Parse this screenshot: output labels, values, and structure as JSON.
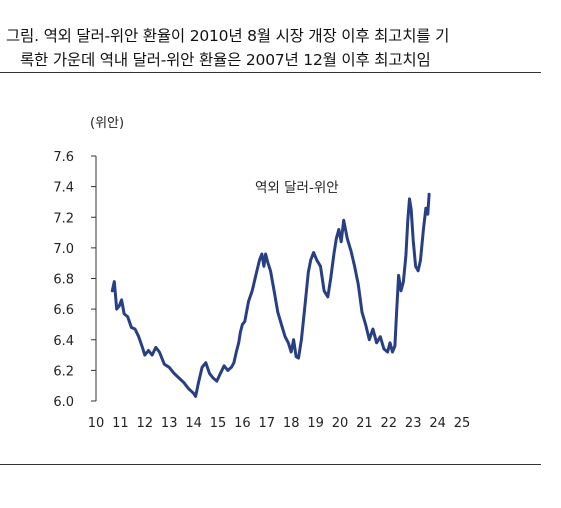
{
  "caption": {
    "line1": "그림. 역외 달러-위안 환율이 2010년 8월 시장 개장 이후 최고치를 기",
    "line2": "록한 가운데 역내 달러-위안 환율은 2007년 12월 이후 최고치임"
  },
  "chart_data": {
    "type": "line",
    "ylabel": "(위안)",
    "ylim": [
      6.0,
      7.6
    ],
    "yticks": [
      "6.0",
      "6.2",
      "6.4",
      "6.6",
      "6.8",
      "7.0",
      "7.2",
      "7.4",
      "7.6"
    ],
    "xlim": [
      10,
      25
    ],
    "xticks": [
      "10",
      "11",
      "12",
      "13",
      "14",
      "15",
      "16",
      "17",
      "18",
      "19",
      "20",
      "21",
      "22",
      "23",
      "24",
      "25"
    ],
    "grid": false,
    "series": [
      {
        "name": "역외 달러-위안",
        "color": "#283f84",
        "x": [
          10.67,
          10.75,
          10.85,
          10.95,
          11.05,
          11.15,
          11.3,
          11.45,
          11.6,
          11.75,
          11.9,
          12.0,
          12.15,
          12.3,
          12.45,
          12.6,
          12.8,
          13.0,
          13.2,
          13.4,
          13.6,
          13.8,
          14.0,
          14.08,
          14.2,
          14.35,
          14.5,
          14.65,
          14.8,
          14.95,
          15.1,
          15.25,
          15.4,
          15.55,
          15.65,
          15.75,
          15.85,
          15.92,
          16.0,
          16.1,
          16.25,
          16.4,
          16.55,
          16.7,
          16.8,
          16.88,
          16.95,
          17.05,
          17.15,
          17.3,
          17.45,
          17.6,
          17.75,
          17.88,
          18.0,
          18.1,
          18.2,
          18.3,
          18.42,
          18.55,
          18.7,
          18.8,
          18.92,
          19.05,
          19.2,
          19.35,
          19.5,
          19.62,
          19.75,
          19.85,
          19.95,
          20.05,
          20.15,
          20.3,
          20.45,
          20.6,
          20.75,
          20.9,
          21.05,
          21.2,
          21.35,
          21.5,
          21.65,
          21.8,
          21.95,
          22.05,
          22.15,
          22.25,
          22.32,
          22.4,
          22.5,
          22.6,
          22.7,
          22.78,
          22.85,
          22.92,
          23.0,
          23.1,
          23.2,
          23.3,
          23.42,
          23.52,
          23.6,
          23.65
        ],
        "y": [
          6.72,
          6.78,
          6.6,
          6.62,
          6.66,
          6.57,
          6.55,
          6.48,
          6.47,
          6.42,
          6.35,
          6.3,
          6.33,
          6.3,
          6.35,
          6.32,
          6.24,
          6.22,
          6.18,
          6.15,
          6.12,
          6.08,
          6.05,
          6.03,
          6.12,
          6.22,
          6.25,
          6.18,
          6.15,
          6.13,
          6.18,
          6.23,
          6.2,
          6.22,
          6.25,
          6.32,
          6.38,
          6.45,
          6.5,
          6.52,
          6.65,
          6.72,
          6.82,
          6.92,
          6.96,
          6.88,
          6.96,
          6.9,
          6.85,
          6.72,
          6.58,
          6.5,
          6.42,
          6.38,
          6.32,
          6.4,
          6.29,
          6.28,
          6.4,
          6.6,
          6.84,
          6.92,
          6.97,
          6.92,
          6.88,
          6.72,
          6.68,
          6.8,
          6.96,
          7.06,
          7.12,
          7.04,
          7.18,
          7.06,
          6.98,
          6.88,
          6.76,
          6.58,
          6.5,
          6.4,
          6.47,
          6.38,
          6.42,
          6.34,
          6.32,
          6.38,
          6.32,
          6.36,
          6.58,
          6.82,
          6.72,
          6.78,
          6.95,
          7.18,
          7.32,
          7.25,
          7.05,
          6.88,
          6.85,
          6.92,
          7.12,
          7.26,
          7.22,
          7.35
        ]
      }
    ]
  }
}
